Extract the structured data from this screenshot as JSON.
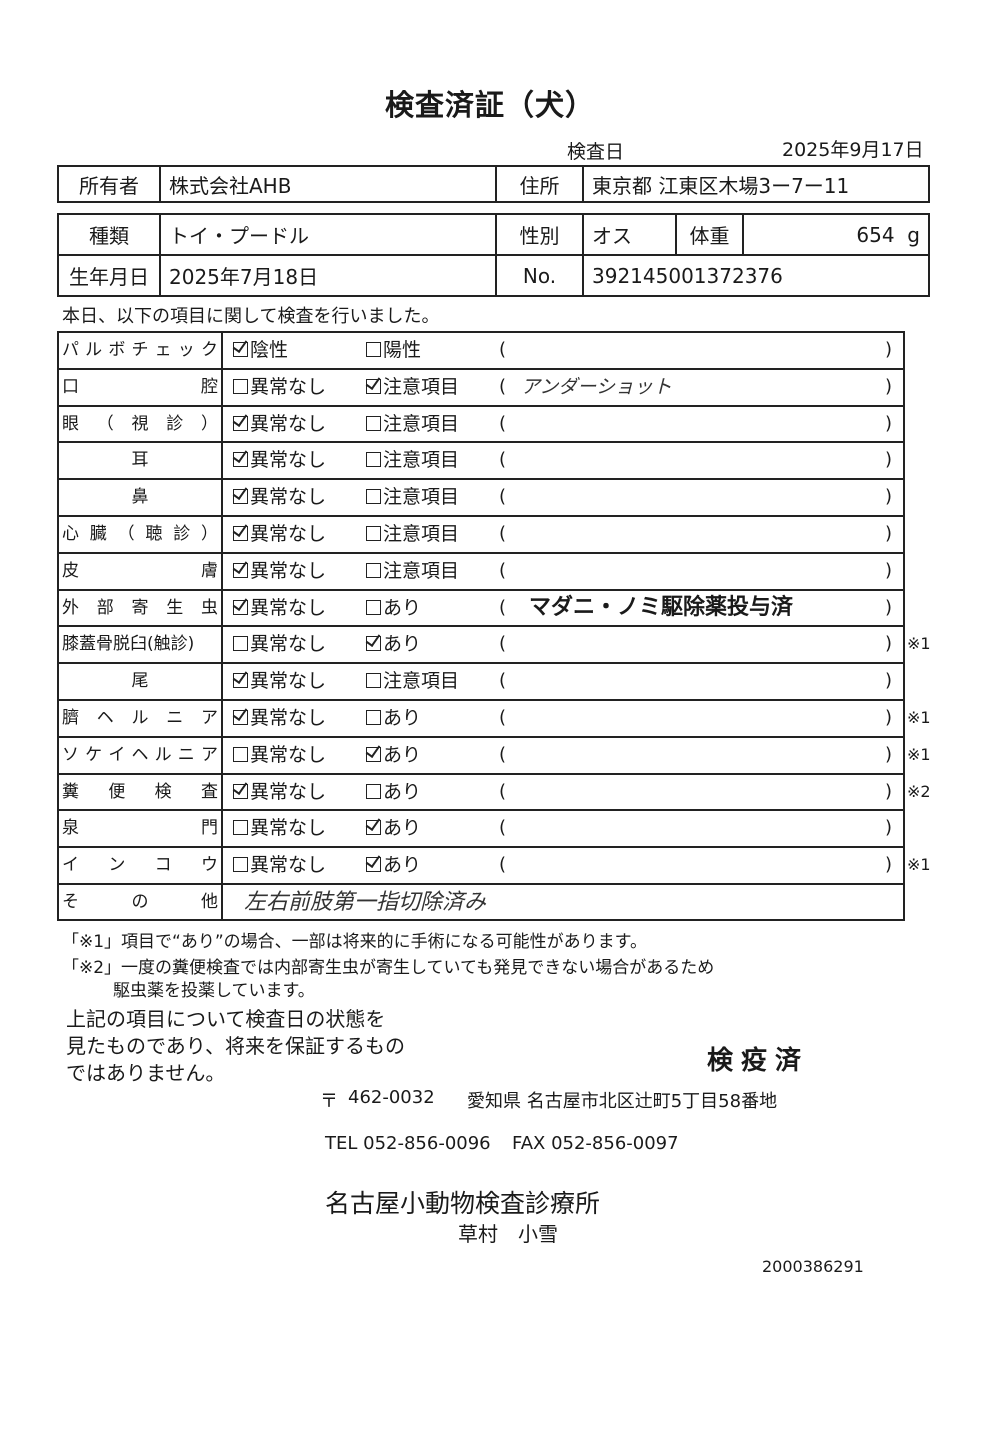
{
  "title": "検査済証（犬）",
  "exam_date_label": "検査日",
  "exam_date": "2025年9月17日",
  "owner": {
    "label": "所有者",
    "value": "株式会社AHB",
    "address_label": "住所",
    "address": "東京都 江東区木場3ー7ー11"
  },
  "pet": {
    "breed_label": "種類",
    "breed": "トイ・プードル",
    "sex_label": "性別",
    "sex": "オス",
    "weight_label": "体重",
    "weight": "654",
    "weight_unit": "g",
    "birth_label": "生年月日",
    "birth": "2025年7月18日",
    "no_label": "No.",
    "no": "392145001372376"
  },
  "intro": "本日、以下の項目に関して検査を行いました。",
  "checks": [
    {
      "label": [
        "パ",
        "ル",
        "ボ",
        "チ",
        "ェ",
        "ッ",
        "ク"
      ],
      "opt1": "陰性",
      "opt2": "陽性",
      "checked": 1,
      "remark": "",
      "note": ""
    },
    {
      "label": [
        "口",
        "腔"
      ],
      "opt1": "異常なし",
      "opt2": "注意項目",
      "checked": 2,
      "remark": "アンダーショット",
      "remark_style": "hand",
      "note": ""
    },
    {
      "label": [
        "眼",
        "（",
        "視",
        "診",
        "）"
      ],
      "opt1": "異常なし",
      "opt2": "注意項目",
      "checked": 1,
      "remark": "",
      "note": ""
    },
    {
      "label": [
        "耳"
      ],
      "center": true,
      "opt1": "異常なし",
      "opt2": "注意項目",
      "checked": 1,
      "remark": "",
      "note": ""
    },
    {
      "label": [
        "鼻"
      ],
      "center": true,
      "opt1": "異常なし",
      "opt2": "注意項目",
      "checked": 1,
      "remark": "",
      "note": ""
    },
    {
      "label": [
        "心",
        "臓",
        "（",
        "聴",
        "診",
        "）"
      ],
      "opt1": "異常なし",
      "opt2": "注意項目",
      "checked": 1,
      "remark": "",
      "note": ""
    },
    {
      "label": [
        "皮",
        "膚"
      ],
      "opt1": "異常なし",
      "opt2": "注意項目",
      "checked": 1,
      "remark": "",
      "note": ""
    },
    {
      "label": [
        "外",
        "部",
        "寄",
        "生",
        "虫"
      ],
      "opt1": "異常なし",
      "opt2": "あり",
      "checked": 1,
      "remark": "マダニ・ノミ駆除薬投与済",
      "remark_style": "bold",
      "note": ""
    },
    {
      "label": [
        "膝蓋骨脱臼(触診)"
      ],
      "opt1": "異常なし",
      "opt2": "あり",
      "checked": 2,
      "remark": "",
      "note": "※1"
    },
    {
      "label": [
        "尾"
      ],
      "center": true,
      "opt1": "異常なし",
      "opt2": "注意項目",
      "checked": 1,
      "remark": "",
      "note": ""
    },
    {
      "label": [
        "臍",
        "ヘ",
        "ル",
        "ニ",
        "ア"
      ],
      "opt1": "異常なし",
      "opt2": "あり",
      "checked": 1,
      "remark": "",
      "note": "※1"
    },
    {
      "label": [
        "ソ",
        "ケ",
        "イ",
        "ヘ",
        "ル",
        "ニ",
        "ア"
      ],
      "opt1": "異常なし",
      "opt2": "あり",
      "checked": 2,
      "remark": "",
      "note": "※1"
    },
    {
      "label": [
        "糞",
        "便",
        "検",
        "査"
      ],
      "opt1": "異常なし",
      "opt2": "あり",
      "checked": 1,
      "remark": "",
      "note": "※2"
    },
    {
      "label": [
        "泉",
        "門"
      ],
      "opt1": "異常なし",
      "opt2": "あり",
      "checked": 2,
      "remark": "",
      "note": ""
    },
    {
      "label": [
        "イ",
        "ン",
        "コ",
        "ウ"
      ],
      "opt1": "異常なし",
      "opt2": "あり",
      "checked": 2,
      "remark": "",
      "note": "※1"
    }
  ],
  "other": {
    "label": [
      "そ",
      "の",
      "他"
    ],
    "value": "左右前肢第一指切除済み"
  },
  "footnotes": [
    "「※1」項目で“あり”の場合、一部は将来的に手術になる可能性があります。",
    "「※2」一度の糞便検査では内部寄生虫が寄生していても発見できない場合があるため",
    "駆虫薬を投薬しています。"
  ],
  "statement": [
    "上記の項目について検査日の状態を",
    "見たものであり、将来を保証するもの",
    "ではありません。"
  ],
  "stamp": "検疫済",
  "clinic": {
    "postal_mark": "〒",
    "postal": "462-0032",
    "address": "愛知県 名古屋市北区辻町5丁目58番地",
    "tel": "TEL 052-856-0096",
    "fax": "FAX 052-856-0097",
    "name": "名古屋小動物検査診療所",
    "person": "草村　小雪"
  },
  "doc_number": "2000386291"
}
